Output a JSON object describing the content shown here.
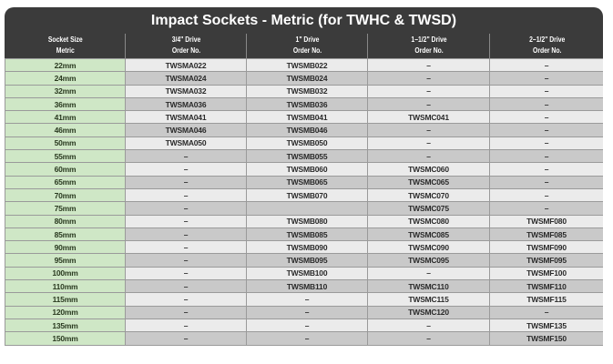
{
  "title": "Impact Sockets - Metric (for TWHC & TWSD)",
  "colors": {
    "header_bg": "#3b3b3b",
    "size_col_bg": "#cfe7c6",
    "row_light": "#ebebeb",
    "row_dark": "#c9c9c9"
  },
  "columns": [
    {
      "line1": "Socket Size",
      "line2": "Metric"
    },
    {
      "line1": "3/4\" Drive",
      "line2": "Order No."
    },
    {
      "line1": "1\" Drive",
      "line2": "Order No."
    },
    {
      "line1": "1–1/2\" Drive",
      "line2": "Order No."
    },
    {
      "line1": "2–1/2\" Drive",
      "line2": "Order No."
    }
  ],
  "rows": [
    [
      "22mm",
      "TWSMA022",
      "TWSMB022",
      "–",
      "–"
    ],
    [
      "24mm",
      "TWSMA024",
      "TWSMB024",
      "–",
      "–"
    ],
    [
      "32mm",
      "TWSMA032",
      "TWSMB032",
      "–",
      "–"
    ],
    [
      "36mm",
      "TWSMA036",
      "TWSMB036",
      "–",
      "–"
    ],
    [
      "41mm",
      "TWSMA041",
      "TWSMB041",
      "TWSMC041",
      "–"
    ],
    [
      "46mm",
      "TWSMA046",
      "TWSMB046",
      "–",
      "–"
    ],
    [
      "50mm",
      "TWSMA050",
      "TWSMB050",
      "–",
      "–"
    ],
    [
      "55mm",
      "–",
      "TWSMB055",
      "–",
      "–"
    ],
    [
      "60mm",
      "–",
      "TWSMB060",
      "TWSMC060",
      "–"
    ],
    [
      "65mm",
      "–",
      "TWSMB065",
      "TWSMC065",
      "–"
    ],
    [
      "70mm",
      "–",
      "TWSMB070",
      "TWSMC070",
      "–"
    ],
    [
      "75mm",
      "–",
      "",
      "TWSMC075",
      "–"
    ],
    [
      "80mm",
      "–",
      "TWSMB080",
      "TWSMC080",
      "TWSMF080"
    ],
    [
      "85mm",
      "–",
      "TWSMB085",
      "TWSMC085",
      "TWSMF085"
    ],
    [
      "90mm",
      "–",
      "TWSMB090",
      "TWSMC090",
      "TWSMF090"
    ],
    [
      "95mm",
      "–",
      "TWSMB095",
      "TWSMC095",
      "TWSMF095"
    ],
    [
      "100mm",
      "–",
      "TWSMB100",
      "–",
      "TWSMF100"
    ],
    [
      "110mm",
      "–",
      "TWSMB110",
      "TWSMC110",
      "TWSMF110"
    ],
    [
      "115mm",
      "–",
      "–",
      "TWSMC115",
      "TWSMF115"
    ],
    [
      "120mm",
      "–",
      "–",
      "TWSMC120",
      "–"
    ],
    [
      "135mm",
      "–",
      "–",
      "–",
      "TWSMF135"
    ],
    [
      "150mm",
      "–",
      "–",
      "–",
      "TWSMF150"
    ]
  ]
}
